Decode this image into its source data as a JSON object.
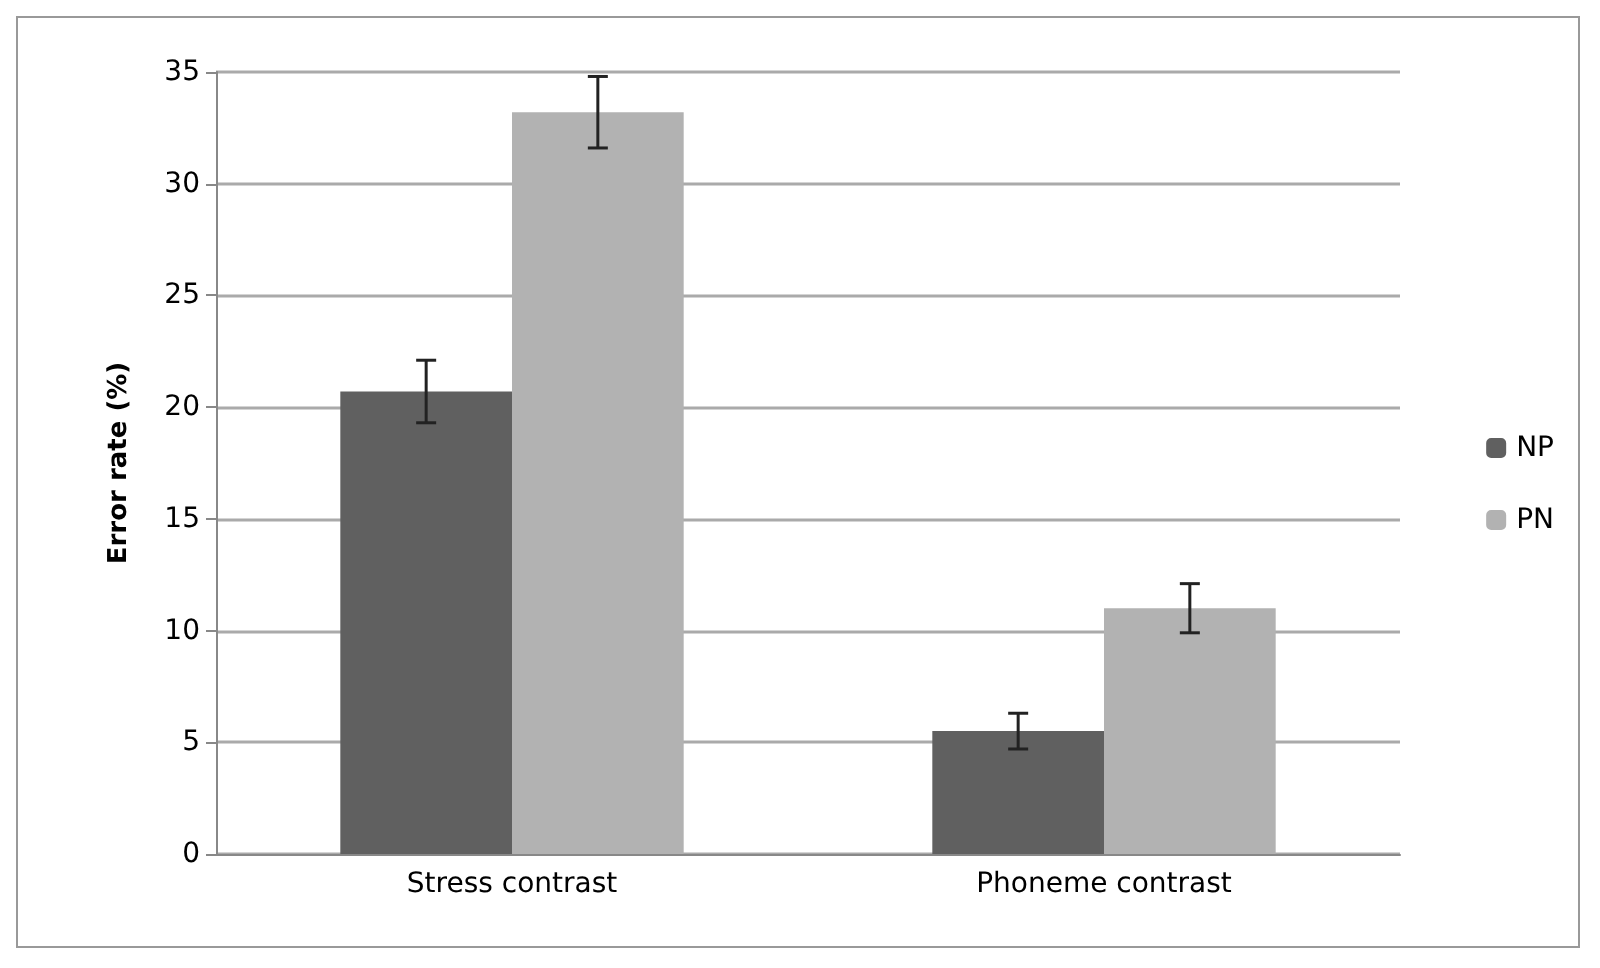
{
  "chart_data": {
    "type": "bar",
    "ylabel": "Error rate (%)",
    "categories": [
      "Stress contrast",
      "Phoneme contrast"
    ],
    "series": [
      {
        "name": "NP",
        "color": "#606060",
        "values": [
          20.7,
          5.5
        ],
        "errors": [
          1.4,
          0.8
        ]
      },
      {
        "name": "PN",
        "color": "#b2b2b2",
        "values": [
          33.2,
          11.0
        ],
        "errors": [
          1.6,
          1.1
        ]
      }
    ],
    "ylim": [
      0,
      35
    ],
    "yticks": [
      0,
      5,
      10,
      15,
      20,
      25,
      30,
      35
    ],
    "grid": "y",
    "legend": "right"
  }
}
